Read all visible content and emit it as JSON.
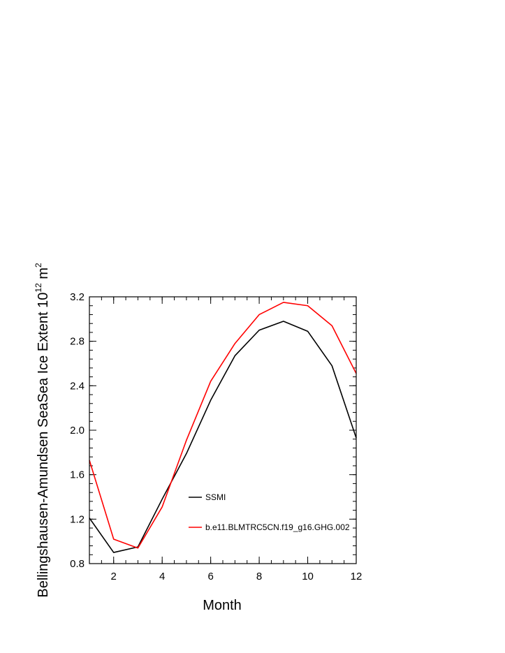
{
  "chart_data": {
    "type": "line",
    "xlabel": "Month",
    "ylabel": {
      "prefix": "Bellingshausen-Amundsen SeaSea Ice Extent 10",
      "exp1": "12",
      "mid": " m",
      "exp2": "2"
    },
    "xlim": [
      1,
      12
    ],
    "ylim": [
      0.8,
      3.2
    ],
    "x_ticks": [
      "2",
      "4",
      "6",
      "8",
      "10",
      "12"
    ],
    "y_ticks": [
      "0.8",
      "1.2",
      "1.6",
      "2.0",
      "2.4",
      "2.8",
      "3.2"
    ],
    "x": [
      1,
      2,
      3,
      4,
      5,
      6,
      7,
      8,
      9,
      10,
      11,
      12
    ],
    "series": [
      {
        "name": "SSMI",
        "color": "#000000",
        "values": [
          1.21,
          0.9,
          0.95,
          1.38,
          1.79,
          2.27,
          2.67,
          2.9,
          2.98,
          2.89,
          2.58,
          1.93
        ]
      },
      {
        "name": "b.e11.BLMTRC5CN.f19_g16.GHG.002",
        "color": "#ff0000",
        "values": [
          1.73,
          1.02,
          0.94,
          1.31,
          1.91,
          2.44,
          2.78,
          3.04,
          3.15,
          3.12,
          2.94,
          2.51
        ]
      }
    ],
    "legend_position": "inside lower-right",
    "grid": false
  }
}
